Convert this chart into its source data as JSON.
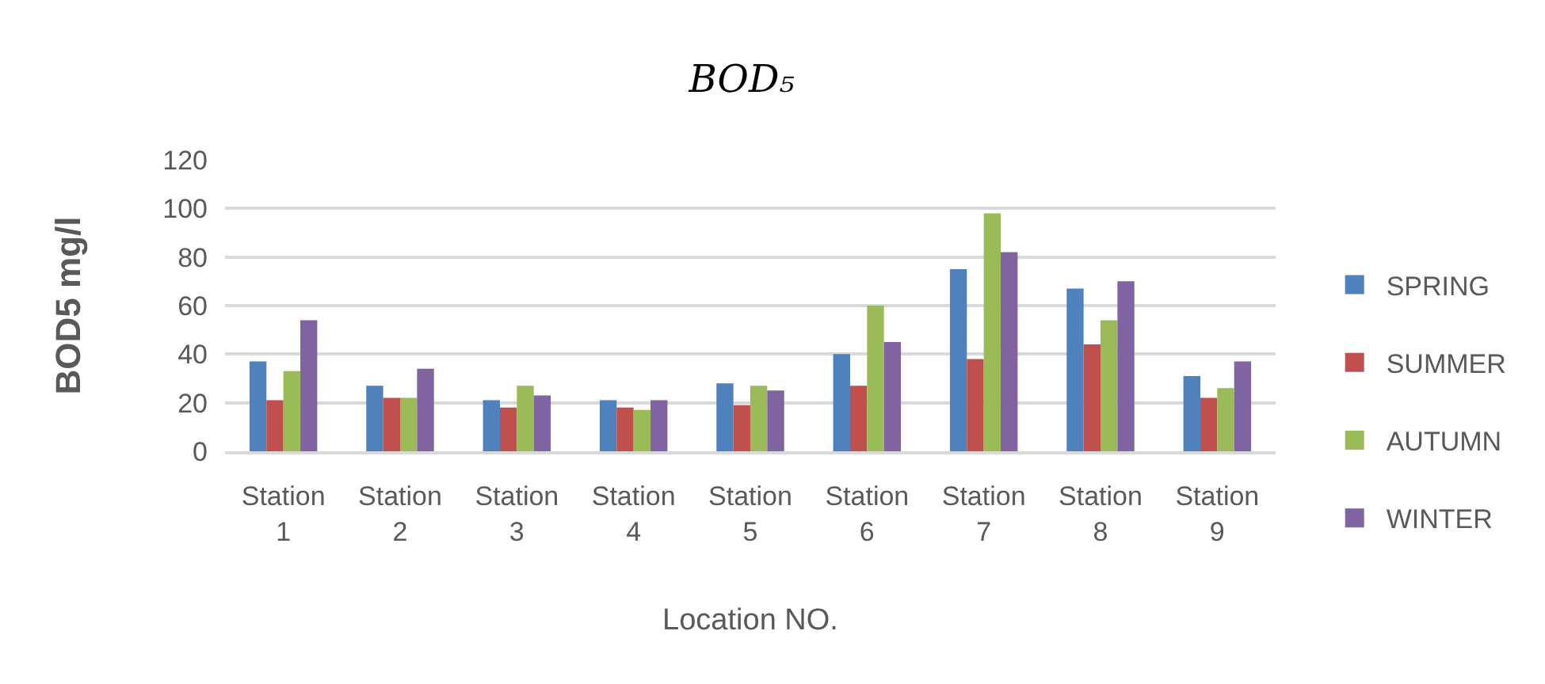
{
  "chart_data": {
    "type": "bar",
    "title": "BOD₅",
    "xlabel": "Location NO.",
    "ylabel": "BOD5 mg/l",
    "categories": [
      "Station 1",
      "Station 2",
      "Station 3",
      "Station 4",
      "Station 5",
      "Station 6",
      "Station 7",
      "Station 8",
      "Station 9"
    ],
    "series": [
      {
        "name": "SPRING",
        "color": "#4f81bd",
        "values": [
          37,
          27,
          21,
          21,
          28,
          40,
          75,
          67,
          31
        ]
      },
      {
        "name": "SUMMER",
        "color": "#c0504d",
        "values": [
          21,
          22,
          18,
          18,
          19,
          27,
          38,
          44,
          22
        ]
      },
      {
        "name": "AUTUMN",
        "color": "#9bbb59",
        "values": [
          33,
          22,
          27,
          17,
          27,
          60,
          98,
          54,
          26
        ]
      },
      {
        "name": "WINTER",
        "color": "#8064a2",
        "values": [
          54,
          34,
          23,
          21,
          25,
          45,
          82,
          70,
          37
        ]
      }
    ],
    "ylim": [
      0,
      120
    ],
    "yticks": [
      0,
      20,
      40,
      60,
      80,
      100,
      120
    ],
    "grid": "y",
    "legend": "right"
  }
}
